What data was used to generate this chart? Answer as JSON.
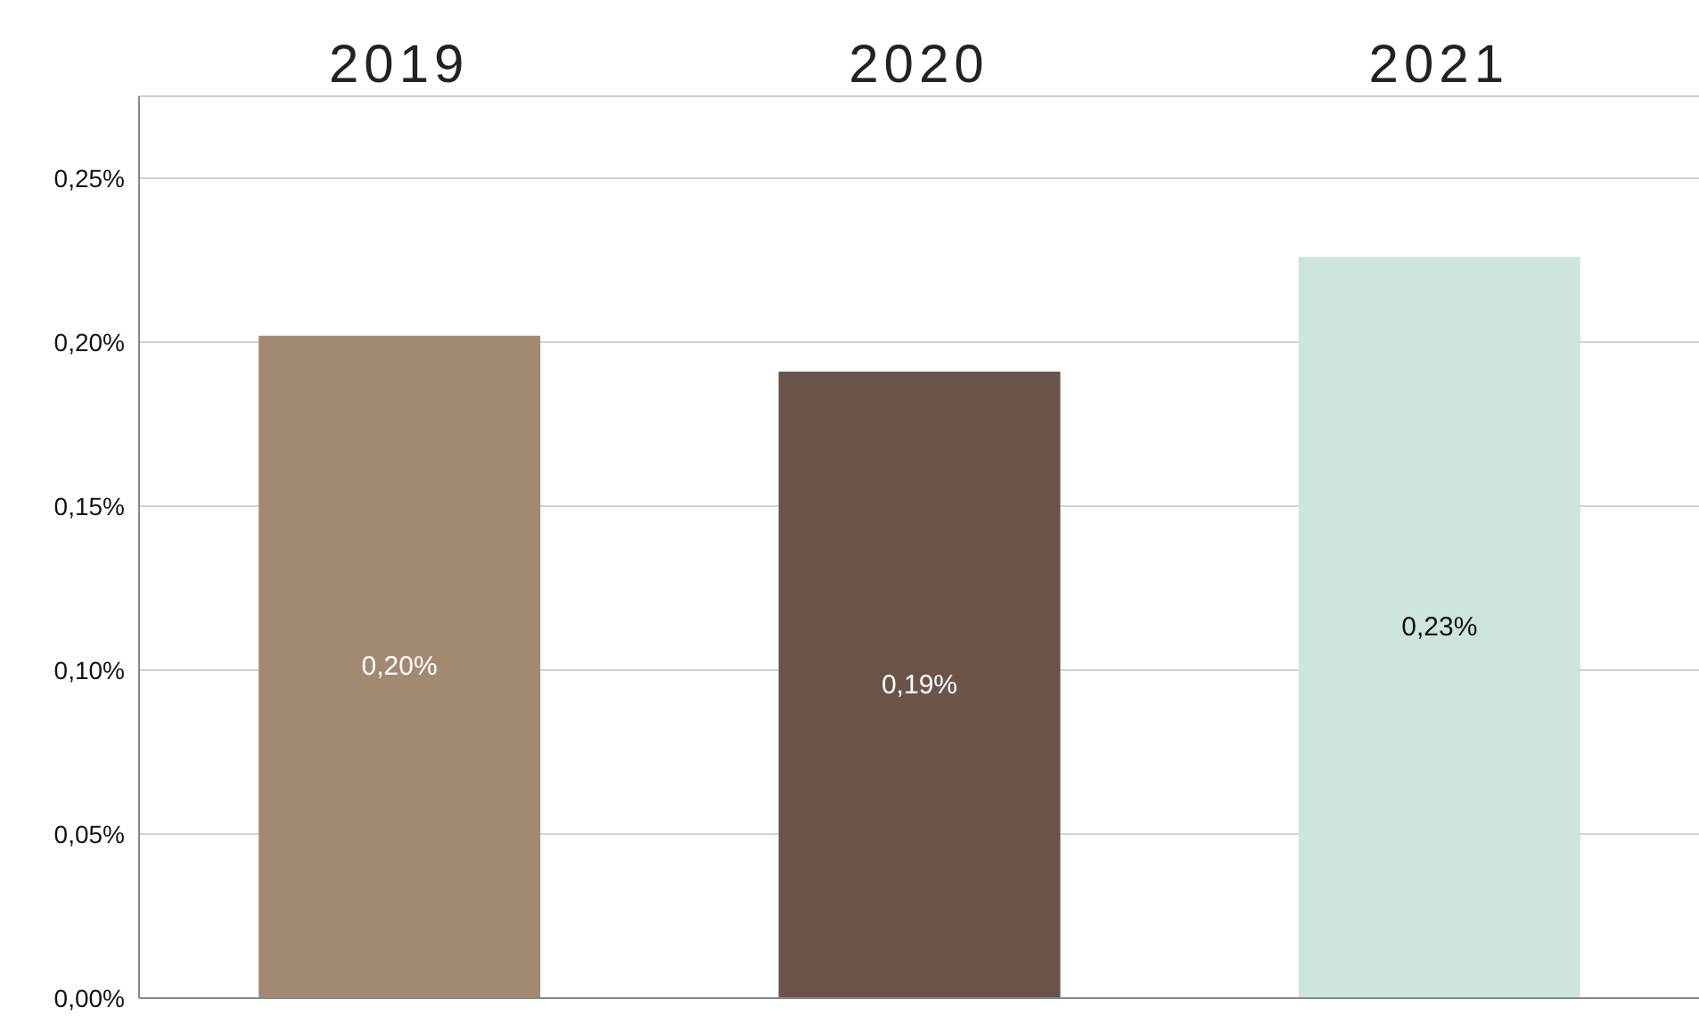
{
  "chart_data": {
    "type": "bar",
    "categories": [
      "2019",
      "2020",
      "2021"
    ],
    "values": [
      0.202,
      0.191,
      0.226
    ],
    "colors": [
      "#a28a72",
      "#6a544a",
      "#cde5da"
    ],
    "value_labels": [
      "0,20%",
      "0,19%",
      "0,23%"
    ],
    "ylim": [
      0,
      0.275
    ],
    "yticks": [
      {
        "value": 0,
        "label": "0,00%"
      },
      {
        "value": 0.05,
        "label": "0,05%"
      },
      {
        "value": 0.1,
        "label": "0,10%"
      },
      {
        "value": 0.15,
        "label": "0,15%"
      },
      {
        "value": 0.2,
        "label": "0,20%"
      },
      {
        "value": 0.25,
        "label": "0,25%"
      }
    ],
    "grid": "y",
    "legend": false
  }
}
